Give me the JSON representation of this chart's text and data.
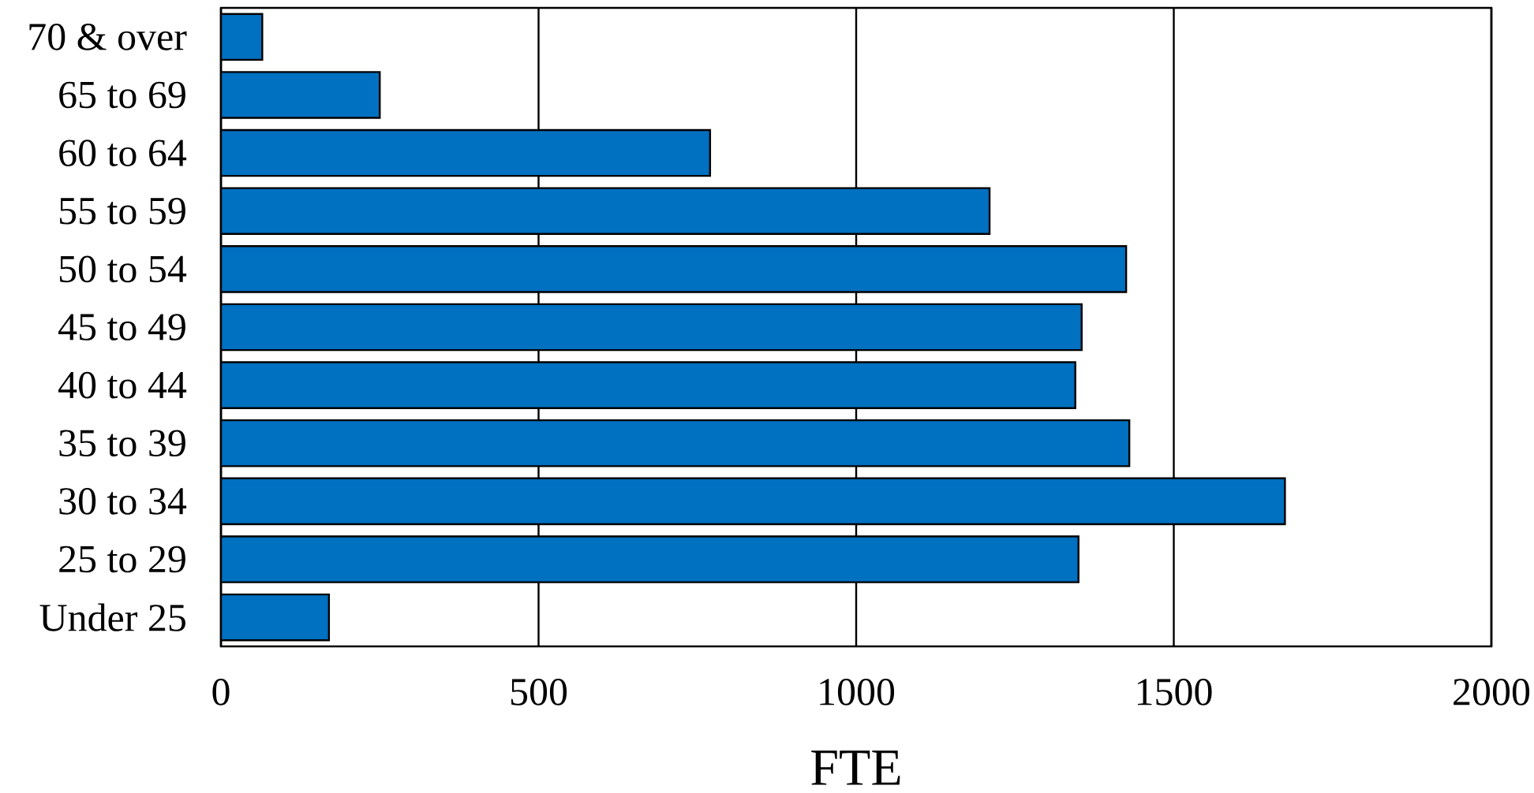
{
  "chart_data": {
    "type": "bar",
    "orientation": "horizontal",
    "categories": [
      "70 & over",
      "65 to 69",
      "60 to 64",
      "55 to 59",
      "50 to 54",
      "45 to 49",
      "40 to 44",
      "35 to 39",
      "30 to 34",
      "25 to 29",
      "Under 25"
    ],
    "values": [
      65,
      250,
      770,
      1210,
      1425,
      1355,
      1345,
      1430,
      1675,
      1350,
      170
    ],
    "color": "#0070c0",
    "xlabel": "FTE",
    "xlim": [
      0,
      2000
    ],
    "xticks": [
      0,
      500,
      1000,
      1500,
      2000
    ],
    "grid": "x"
  }
}
